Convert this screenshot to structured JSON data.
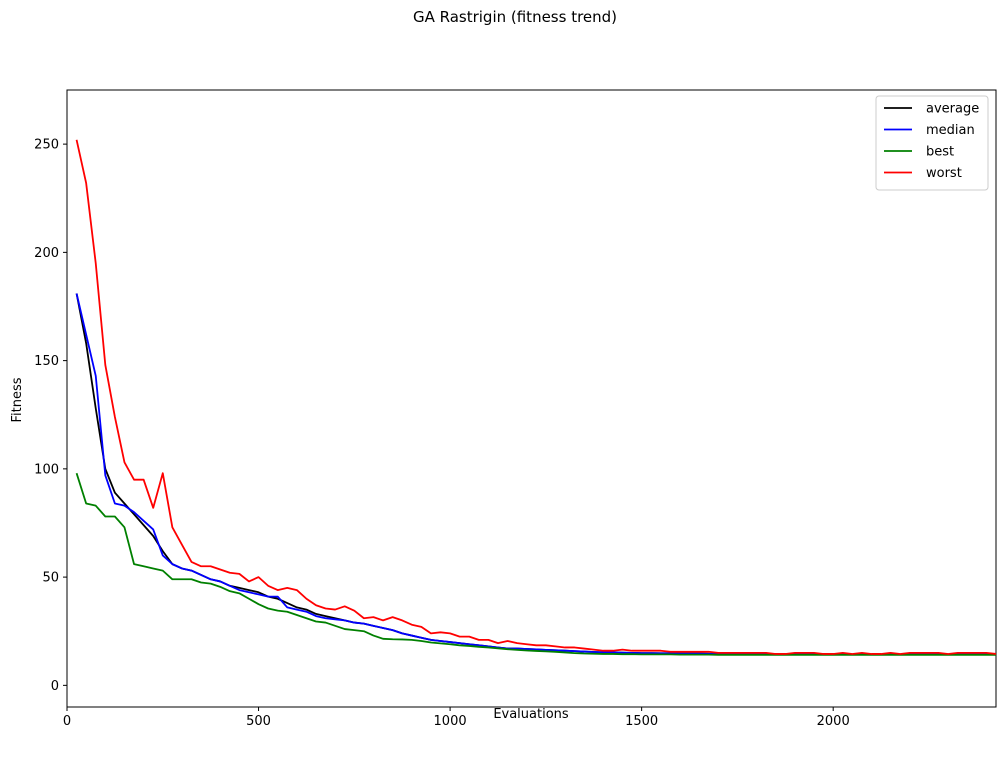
{
  "chart_data": {
    "type": "line",
    "title": "GA Rastrigin (fitness trend)",
    "xlabel": "Evaluations",
    "ylabel": "Fitness",
    "xlim": [
      0,
      2425
    ],
    "ylim": [
      -10,
      275
    ],
    "xticks": [
      0,
      500,
      1000,
      1500,
      2000
    ],
    "yticks": [
      0,
      50,
      100,
      150,
      200,
      250
    ],
    "grid": false,
    "legend_position": "top-right",
    "x": [
      25,
      50,
      75,
      100,
      125,
      150,
      175,
      200,
      225,
      250,
      275,
      300,
      325,
      350,
      375,
      400,
      425,
      450,
      475,
      500,
      525,
      550,
      575,
      600,
      625,
      650,
      675,
      700,
      725,
      750,
      775,
      800,
      825,
      850,
      875,
      900,
      925,
      950,
      975,
      1000,
      1025,
      1050,
      1075,
      1100,
      1125,
      1150,
      1175,
      1200,
      1225,
      1250,
      1275,
      1300,
      1325,
      1350,
      1375,
      1400,
      1425,
      1450,
      1475,
      1500,
      1525,
      1550,
      1575,
      1600,
      1625,
      1650,
      1675,
      1700,
      1725,
      1750,
      1775,
      1800,
      1825,
      1850,
      1875,
      1900,
      1925,
      1950,
      1975,
      2000,
      2025,
      2050,
      2075,
      2100,
      2125,
      2150,
      2175,
      2200,
      2225,
      2250,
      2275,
      2300,
      2325,
      2350,
      2375,
      2400,
      2425
    ],
    "series": [
      {
        "name": "average",
        "color": "#000000",
        "values": [
          181,
          158,
          128,
          100,
          89,
          84,
          79,
          74,
          69,
          62,
          56,
          54,
          53,
          51,
          49,
          48,
          46,
          45,
          44,
          43,
          41,
          40,
          38,
          36,
          35,
          33,
          32,
          31,
          30,
          29,
          28.5,
          27.5,
          26.5,
          25.5,
          24,
          23,
          22,
          21,
          20.5,
          20,
          19.5,
          19,
          18.5,
          18,
          17.5,
          17,
          17,
          16.8,
          16.6,
          16.4,
          16.2,
          16,
          15.8,
          15.6,
          15.4,
          15.3,
          15.2,
          15.1,
          15,
          14.9,
          14.9,
          14.8,
          14.8,
          14.7,
          14.7,
          14.7,
          14.6,
          14.6,
          14.6,
          14.5,
          14.5,
          14.5,
          14.5,
          14.5,
          14.4,
          14.4,
          14.4,
          14.4,
          14.4,
          14.4,
          14.3,
          14.3,
          14.3,
          14.3,
          14.3,
          14.3,
          14.3,
          14.3,
          14.3,
          14.3,
          14.3,
          14.3,
          14.3,
          14.3,
          14.3,
          14.3,
          14.3
        ]
      },
      {
        "name": "median",
        "color": "#0000ff",
        "values": [
          181,
          162,
          143,
          97,
          84,
          83,
          80,
          76,
          72,
          60,
          56,
          54,
          53,
          51,
          49,
          48,
          46,
          44,
          43,
          42,
          41,
          41,
          36,
          35,
          34,
          32,
          31,
          30.5,
          30,
          29,
          28.5,
          27.5,
          26.5,
          25.5,
          24,
          23,
          22,
          21,
          20.5,
          20,
          19.5,
          19,
          18.5,
          18,
          17.5,
          17,
          17,
          16.8,
          16.6,
          16.4,
          16.2,
          16,
          15.8,
          15.6,
          15.4,
          15.3,
          15.2,
          15.1,
          15,
          14.9,
          14.9,
          14.8,
          14.8,
          14.7,
          14.7,
          14.7,
          14.6,
          14.6,
          14.6,
          14.5,
          14.5,
          14.5,
          14.5,
          14.5,
          14.4,
          14.4,
          14.4,
          14.4,
          14.4,
          14.4,
          14.3,
          14.3,
          14.3,
          14.3,
          14.3,
          14.3,
          14.3,
          14.3,
          14.3,
          14.3,
          14.3,
          14.3,
          14.3,
          14.3,
          14.3,
          14.3,
          14.3
        ]
      },
      {
        "name": "best",
        "color": "#008000",
        "values": [
          98,
          84,
          83,
          78,
          78,
          73,
          56,
          55,
          54,
          53,
          49,
          49,
          49,
          47.5,
          47,
          45.5,
          43.5,
          42.5,
          40,
          37.5,
          35.5,
          34.5,
          34,
          32.5,
          31,
          29.5,
          29,
          27.5,
          26,
          25.5,
          25,
          23,
          21.5,
          21.3,
          21.2,
          21,
          20.5,
          19.8,
          19.4,
          19,
          18.5,
          18.2,
          17.8,
          17.5,
          17.1,
          16.7,
          16.4,
          16.1,
          15.9,
          15.7,
          15.5,
          15.2,
          14.9,
          14.7,
          14.6,
          14.5,
          14.5,
          14.4,
          14.4,
          14.3,
          14.3,
          14.3,
          14.3,
          14.2,
          14.2,
          14.2,
          14.2,
          14.1,
          14.1,
          14.1,
          14.1,
          14.1,
          14.1,
          14.1,
          14.1,
          14.1,
          14.1,
          14.1,
          14.1,
          14.1,
          14.1,
          14.1,
          14.1,
          14.1,
          14.1,
          14.1,
          14.1,
          14.1,
          14.1,
          14.1,
          14.1,
          14.1,
          14.1,
          14.1,
          14.1,
          14.1,
          14.1
        ]
      },
      {
        "name": "worst",
        "color": "#ff0000",
        "values": [
          252,
          232,
          195,
          148,
          124,
          103,
          95,
          95,
          82,
          98,
          73,
          65,
          57,
          55,
          55,
          53.5,
          52,
          51.5,
          48,
          50,
          46,
          44,
          45,
          44,
          40,
          37,
          35.5,
          35,
          36.5,
          34.5,
          31,
          31.5,
          30,
          31.5,
          30,
          28,
          27,
          24,
          24.5,
          24,
          22.5,
          22.5,
          21,
          21,
          19.5,
          20.5,
          19.5,
          19,
          18.5,
          18.5,
          18,
          17.5,
          17.5,
          17,
          16.5,
          16,
          16,
          16.5,
          16,
          16,
          16,
          16,
          15.5,
          15.5,
          15.5,
          15.5,
          15.5,
          15,
          15,
          15,
          15,
          15,
          15,
          14.5,
          14.5,
          15,
          15,
          15,
          14.5,
          14.5,
          15,
          14.5,
          15,
          14.5,
          14.5,
          15,
          14.5,
          15,
          15,
          15,
          15,
          14.5,
          15,
          15,
          15,
          15,
          14.5
        ]
      }
    ]
  }
}
